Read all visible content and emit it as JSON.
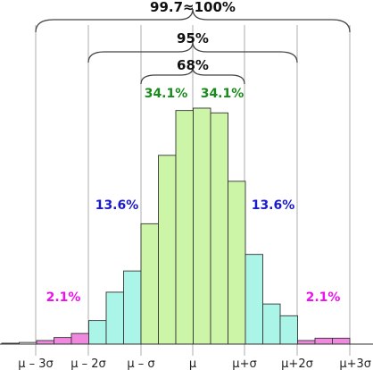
{
  "chart_data": {
    "type": "bar",
    "title": "",
    "xlabel": "",
    "ylabel": "",
    "axis_ticks": [
      "μ – 3σ",
      "μ – 2σ",
      "μ – σ",
      "μ",
      "μ+σ",
      "μ+2σ",
      "μ+3σ"
    ],
    "bins": [
      {
        "value": 0.002,
        "color": "#ffffff"
      },
      {
        "value": 0.007,
        "color": "#ffffff"
      },
      {
        "value": 0.015,
        "color": "#f088e0"
      },
      {
        "value": 0.028,
        "color": "#f088e0"
      },
      {
        "value": 0.045,
        "color": "#f088e0"
      },
      {
        "value": 0.1,
        "color": "#aaf5e8"
      },
      {
        "value": 0.22,
        "color": "#aaf5e8"
      },
      {
        "value": 0.31,
        "color": "#aaf5e8"
      },
      {
        "value": 0.51,
        "color": "#ccf5a8"
      },
      {
        "value": 0.8,
        "color": "#ccf5a8"
      },
      {
        "value": 0.99,
        "color": "#ccf5a8"
      },
      {
        "value": 1.0,
        "color": "#ccf5a8"
      },
      {
        "value": 0.98,
        "color": "#ccf5a8"
      },
      {
        "value": 0.69,
        "color": "#ccf5a8"
      },
      {
        "value": 0.38,
        "color": "#aaf5e8"
      },
      {
        "value": 0.17,
        "color": "#aaf5e8"
      },
      {
        "value": 0.12,
        "color": "#aaf5e8"
      },
      {
        "value": 0.015,
        "color": "#f088e0"
      },
      {
        "value": 0.025,
        "color": "#f088e0"
      },
      {
        "value": 0.025,
        "color": "#f088e0"
      }
    ],
    "ylim": [
      0,
      1.0
    ],
    "brace_labels": [
      "99.7≈100%",
      "95%",
      "68%"
    ],
    "annotations": {
      "green_left": "34.1%",
      "green_right": "34.1%",
      "blue_left": "13.6%",
      "blue_right": "13.6%",
      "magenta_left": "2.1%",
      "magenta_right": "2.1%"
    },
    "colors": {
      "green_text": "#1a8a1a",
      "blue_text": "#1a1acc",
      "magenta_text": "#ee11ee",
      "dark_text": "#111111"
    }
  }
}
